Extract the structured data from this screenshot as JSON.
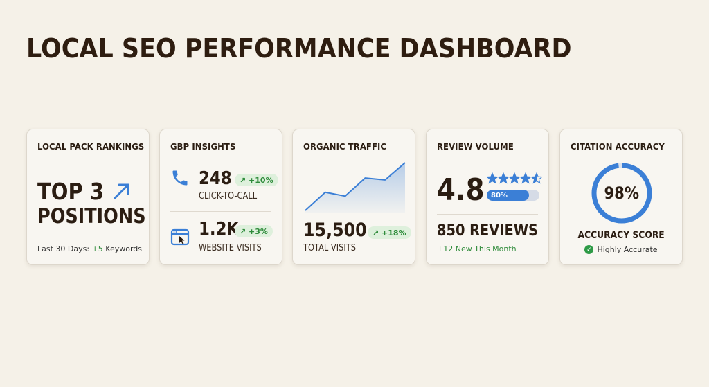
{
  "page": {
    "title": "LOCAL SEO PERFORMANCE DASHBOARD"
  },
  "colors": {
    "accent_blue": "#3b7fd6",
    "positive_green": "#2e8b3a",
    "background": "#f5f1e8",
    "text_dark": "#2b1d12"
  },
  "cards": {
    "rankings": {
      "title": "LOCAL PACK RANKINGS",
      "line1": "TOP 3",
      "line2": "POSITIONS",
      "icon": "trend-up-arrow-icon",
      "footer_prefix": "Last 30 Days: ",
      "footer_highlight": "+5",
      "footer_suffix": " Keywords"
    },
    "gbp": {
      "title": "GBP INSIGHTS",
      "calls": {
        "icon": "phone-icon",
        "value": "248",
        "change": "↗ +10%",
        "label": "CLICK-TO-CALL"
      },
      "visits": {
        "icon": "browser-click-icon",
        "value": "1.2K",
        "change": "↗ +3%",
        "label": "WEBSITE VISITS"
      }
    },
    "traffic": {
      "title": "ORGANIC TRAFFIC",
      "value": "15,500",
      "change": "↗ +18%",
      "label": "TOTAL VISITS",
      "trend": [
        0,
        0.38,
        0.3,
        0.68,
        0.64,
        1.0
      ]
    },
    "reviews": {
      "title": "REVIEW VOLUME",
      "rating": "4.8",
      "stars": 4.5,
      "progress_label": "80%",
      "progress": 0.8,
      "count": "850 REVIEWS",
      "new": "+12 New This Month"
    },
    "citations": {
      "title": "CITATION ACCURACY",
      "percent": "98%",
      "value": 0.98,
      "score_label": "ACCURACY SCORE",
      "status": "Highly Accurate"
    }
  }
}
